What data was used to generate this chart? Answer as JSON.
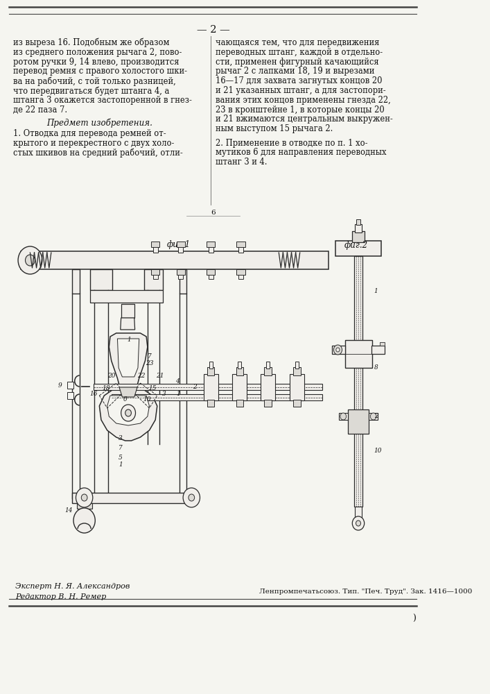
{
  "page_number": "— 2 —",
  "bg_color": "#f5f5f0",
  "text_color": "#111111",
  "left_col_lines": [
    "из выреза 16. Подобным же образом",
    "из среднего положения рычага 2, пово-",
    "ротом ручки 9, 14 влево, производится",
    "перевод ремня с правого холостого шки-",
    "ва на рабочий, с той только разницей,",
    "что передвигаться будет штанга 4, а",
    "штанга 3 окажется застопоренной в гнез-",
    "де 22 паза 7."
  ],
  "predmet_header": "Предмет изобретения.",
  "predmet1_lines": [
    "1. Отводка для перевода ремней от-",
    "крытого и перекрестного с двух холо-",
    "стых шкивов на средний рабочий, отли-"
  ],
  "right_col_lines": [
    "чающаяся тем, что для передвижения",
    "переводных штанг, каждой в отдельно-",
    "сти, применен фигурный качающийся",
    "рычаг 2 с лапками 18, 19 и вырезами",
    "16—17 для захвата загнутых концов 20",
    "и 21 указанных штанг, а для застопори-",
    "вания этих концов применены гнезда 22,",
    "23 в кронштейне 1, в которые концы 20",
    "и 21 вжимаются центральным выкружен-",
    "ным выступом 15 рычага 2."
  ],
  "predmet2_lines": [
    "2. Применение в отводке по п. 1 хо-",
    "мутиков 6 для направления переводных",
    "штанг 3 и 4."
  ],
  "fig1_label": "фиг.1",
  "fig2_label": "фиг.2",
  "separator_char": "6",
  "expert_line": "Эксперт Н. Я. Александров",
  "editor_line": "Редактор В. Н. Ремер",
  "publisher_line": "Ленпромпечатьсоюз. Тип. \"Печ. Труд\". Зак. 1416—1000",
  "draw_line_color": "#2a2a2a",
  "draw_fill_light": "#f0eeea",
  "draw_fill_med": "#dcdad5"
}
